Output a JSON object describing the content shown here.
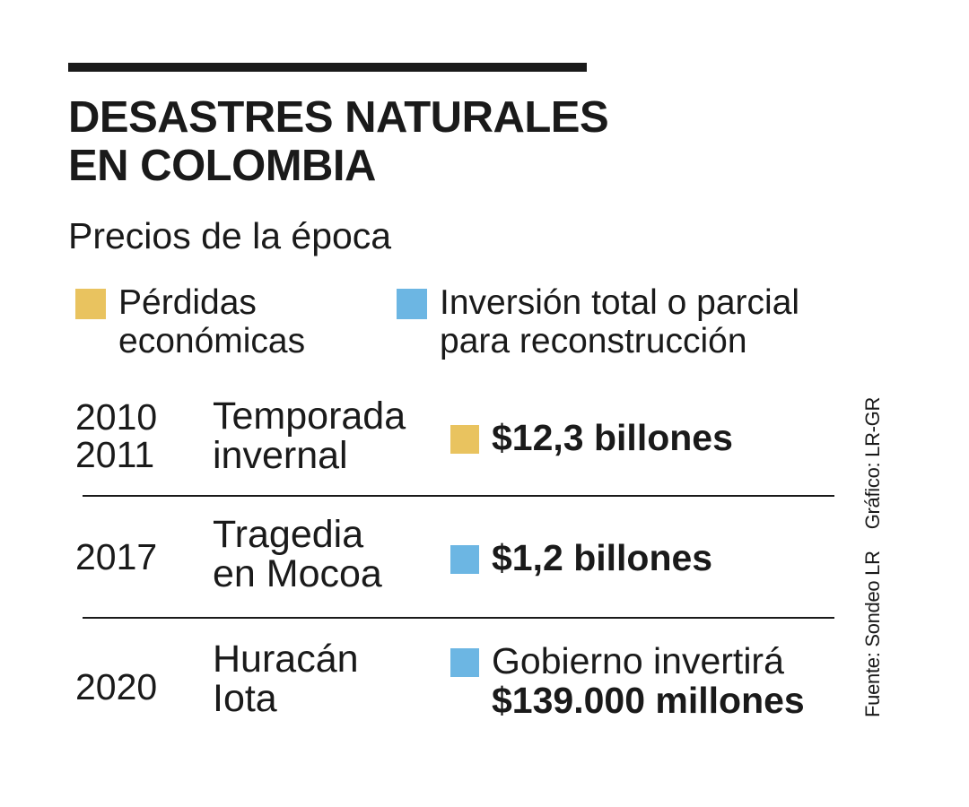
{
  "title": [
    "DESASTRES NATURALES",
    "EN COLOMBIA"
  ],
  "subtitle": "Precios de la época",
  "legend": [
    {
      "lines": [
        "Pérdidas",
        "económicas"
      ],
      "color": "#e9c35f"
    },
    {
      "lines": [
        "Inversión total o parcial",
        "para reconstrucción"
      ],
      "color": "#6cb6e3"
    }
  ],
  "rows": [
    {
      "years": [
        "2010",
        "2011"
      ],
      "event": [
        "Temporada",
        "invernal"
      ],
      "value": [
        "$12,3 billones"
      ],
      "color": "#e9c35f"
    },
    {
      "years": [
        "2017"
      ],
      "event": [
        "Tragedia",
        "en Mocoa"
      ],
      "value": [
        "$1,2 billones"
      ],
      "color": "#6cb6e3"
    },
    {
      "years": [
        "2020"
      ],
      "event": [
        "Huracán",
        "Iota"
      ],
      "value": [
        "Gobierno invertirá",
        "$139.000 millones"
      ],
      "color": "#6cb6e3"
    }
  ],
  "source": "Fuente: Sondeo LR",
  "credit": "Gráfico: LR-GR"
}
